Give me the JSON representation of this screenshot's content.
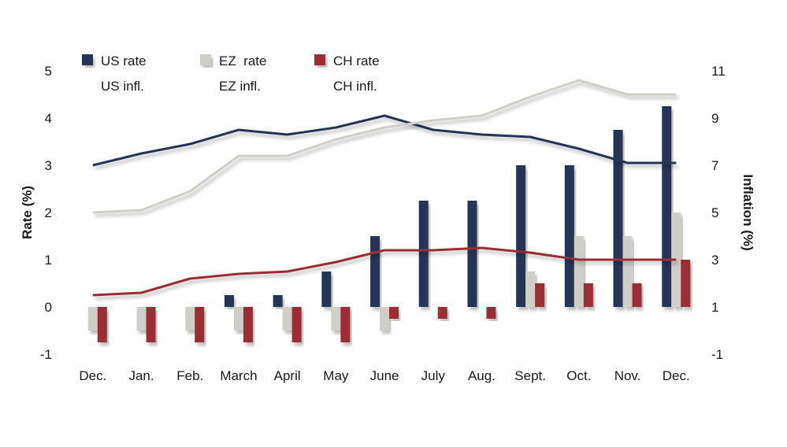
{
  "chart_data": {
    "type": "bar",
    "categories": [
      "Dec.",
      "Jan.",
      "Feb.",
      "March",
      "April",
      "May",
      "June",
      "July",
      "Aug.",
      "Sept.",
      "Oct.",
      "Nov.",
      "Dec."
    ],
    "bar_series": [
      {
        "name": "US rate",
        "color": "#253656",
        "values": [
          0,
          0,
          0,
          0.25,
          0.25,
          0.75,
          1.5,
          2.25,
          2.25,
          3.0,
          3.0,
          3.75,
          4.25
        ]
      },
      {
        "name": "EZ  rate",
        "color": "#cfcfca",
        "values": [
          -0.5,
          -0.5,
          -0.5,
          -0.5,
          -0.5,
          -0.5,
          -0.5,
          0,
          0,
          0.75,
          1.5,
          1.5,
          2.0
        ]
      },
      {
        "name": "CH rate",
        "color": "#9b2d35",
        "values": [
          -0.75,
          -0.75,
          -0.75,
          -0.75,
          -0.75,
          -0.75,
          -0.25,
          -0.25,
          -0.25,
          0.5,
          0.5,
          0.5,
          1.0
        ]
      }
    ],
    "line_series": [
      {
        "name": "US infl.",
        "color": "#253656",
        "values": [
          7.0,
          7.5,
          7.9,
          8.5,
          8.3,
          8.6,
          9.1,
          8.5,
          8.3,
          8.2,
          7.7,
          7.1,
          7.1
        ]
      },
      {
        "name": "EZ infl.",
        "color": "#cfcfca",
        "values": [
          5.0,
          5.1,
          5.9,
          7.4,
          7.4,
          8.1,
          8.6,
          8.9,
          9.1,
          9.9,
          10.6,
          10.0,
          10.0
        ]
      },
      {
        "name": "CH infl.",
        "color": "#9b2d35",
        "values": [
          1.5,
          1.6,
          2.2,
          2.4,
          2.5,
          2.9,
          3.4,
          3.4,
          3.5,
          3.3,
          3.0,
          3.0,
          3.0
        ]
      }
    ],
    "ylabel": "Rate (%)",
    "y2label": "Inflation (%)",
    "ylim": [
      -1,
      5
    ],
    "y2lim": [
      -1,
      11
    ],
    "yticks": [
      -1,
      0,
      1,
      2,
      3,
      4,
      5
    ],
    "y2ticks": [
      -1,
      1,
      3,
      5,
      7,
      9,
      11
    ],
    "legend_position": "top",
    "grid": false
  }
}
